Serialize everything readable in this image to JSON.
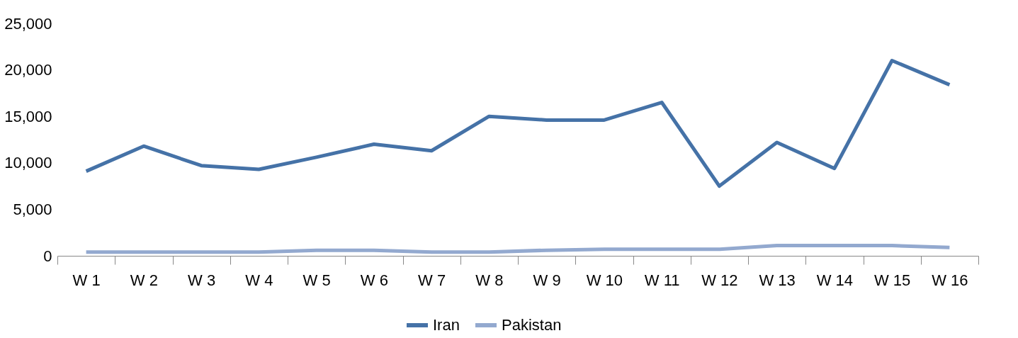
{
  "chart_data": {
    "type": "line",
    "categories": [
      "W 1",
      "W 2",
      "W 3",
      "W 4",
      "W 5",
      "W 6",
      "W 7",
      "W 8",
      "W 9",
      "W 10",
      "W 11",
      "W 12",
      "W 13",
      "W 14",
      "W 15",
      "W 16"
    ],
    "series": [
      {
        "name": "Iran",
        "color": "#4572a7",
        "values": [
          9100,
          11800,
          9700,
          9300,
          10600,
          12000,
          11300,
          15000,
          14600,
          14600,
          16500,
          7500,
          12200,
          9400,
          21000,
          18400
        ]
      },
      {
        "name": "Pakistan",
        "color": "#93a9cf",
        "values": [
          400,
          400,
          400,
          400,
          600,
          600,
          400,
          400,
          600,
          700,
          700,
          700,
          1100,
          1100,
          1100,
          900
        ]
      }
    ],
    "ylim": [
      0,
      25000
    ],
    "yticks": [
      0,
      {
        "value": 5000,
        "label": "5,000"
      },
      {
        "value": 10000,
        "label": "10,000"
      },
      {
        "value": 15000,
        "label": "15,000"
      },
      {
        "value": 20000,
        "label": "20,000"
      },
      {
        "value": 25000,
        "label": "25,000"
      }
    ],
    "grid": false,
    "legend": "bottom",
    "marker": "none",
    "line_style": "solid"
  }
}
